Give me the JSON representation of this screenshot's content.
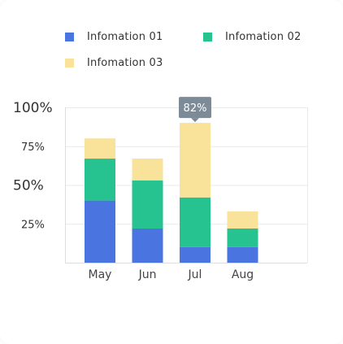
{
  "legend": [
    {
      "name": "Infomation 01",
      "color": "#4a74e0"
    },
    {
      "name": "Infomation 02",
      "color": "#26c391"
    },
    {
      "name": "Infomation 03",
      "color": "#f9e29a"
    }
  ],
  "tooltip": {
    "text": "82%",
    "category": "Jul"
  },
  "chart_data": {
    "type": "bar",
    "stacked": true,
    "categories": [
      "May",
      "Jun",
      "Jul",
      "Aug"
    ],
    "series": [
      {
        "name": "Infomation 01",
        "values": [
          40,
          22,
          10,
          10
        ]
      },
      {
        "name": "Infomation 02",
        "values": [
          27,
          31,
          32,
          12
        ]
      },
      {
        "name": "Infomation 03",
        "values": [
          13,
          14,
          48,
          11
        ]
      }
    ],
    "yticks": [
      {
        "value": 100,
        "label": "100%",
        "size": "big"
      },
      {
        "value": 75,
        "label": "75%",
        "size": "small"
      },
      {
        "value": 50,
        "label": "50%",
        "size": "big"
      },
      {
        "value": 25,
        "label": "25%",
        "size": "small"
      }
    ],
    "ylim": [
      0,
      100
    ],
    "grid": true,
    "legend_position": "top-left",
    "colors": {
      "grid": "#e9e9e9",
      "axis": "#dddddd",
      "tooltip_bg": "#7d8b99"
    }
  }
}
